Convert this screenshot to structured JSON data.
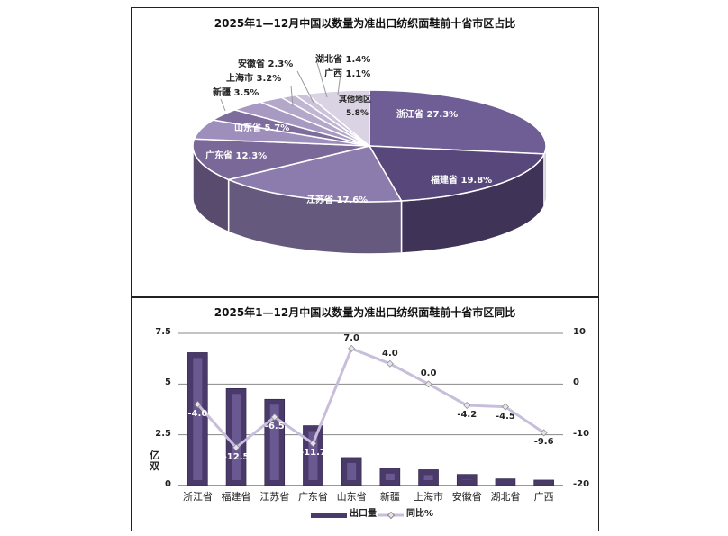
{
  "chart_data": [
    {
      "type": "pie",
      "title": "2025年1—12月中国以数量为准出口纺织面鞋前十省市区占比",
      "slices": [
        {
          "label": "浙江省",
          "value": 27.3,
          "text": "浙江省 27.3%",
          "color": "#6f5d95"
        },
        {
          "label": "福建省",
          "value": 19.8,
          "text": "福建省 19.8%",
          "color": "#58477a"
        },
        {
          "label": "江苏省",
          "value": 17.6,
          "text": "江苏省 17.6%",
          "color": "#8c7cad"
        },
        {
          "label": "广东省",
          "value": 12.3,
          "text": "广东省 12.3%",
          "color": "#7a6899"
        },
        {
          "label": "山东省",
          "value": 5.7,
          "text": "山东省 5.7%",
          "color": "#9d8ebb"
        },
        {
          "label": "新疆",
          "value": 3.5,
          "text": "新疆 3.5%",
          "color": "#7d6c9c"
        },
        {
          "label": "上海市",
          "value": 3.2,
          "text": "上海市 3.2%",
          "color": "#a799c2"
        },
        {
          "label": "安徽省",
          "value": 2.3,
          "text": "安徽省 2.3%",
          "color": "#b3a7ca"
        },
        {
          "label": "湖北省",
          "value": 1.4,
          "text": "湖北省 1.4%",
          "color": "#c0b6d3"
        },
        {
          "label": "广西",
          "value": 1.1,
          "text": "广西 1.1%",
          "color": "#cbc2db"
        },
        {
          "label": "其他地区",
          "value": 5.8,
          "text": "5.8%",
          "color": "#d9d3e3"
        }
      ]
    },
    {
      "type": "bar",
      "title": "2025年1—12月中国以数量为准出口纺织面鞋前十省市区同比",
      "categories": [
        "浙江省",
        "福建省",
        "江苏省",
        "广东省",
        "山东省",
        "新疆",
        "上海市",
        "安徽省",
        "湖北省",
        "广西"
      ],
      "series": [
        {
          "name": "出口量",
          "type": "bar",
          "axis": "left",
          "values": [
            6.55,
            4.78,
            4.25,
            2.95,
            1.38,
            0.85,
            0.78,
            0.55,
            0.33,
            0.27
          ],
          "color": "#4e3e6e"
        },
        {
          "name": "同比%",
          "type": "line",
          "axis": "right",
          "values": [
            -4.0,
            -12.5,
            -6.5,
            -11.7,
            7.0,
            4.0,
            0.0,
            -4.2,
            -4.5,
            -9.6
          ],
          "labels": [
            "-4.0",
            "-12.5",
            "-6.5",
            "-11.7",
            "7.0",
            "4.0",
            "0.0",
            "-4.2",
            "-4.5",
            "-9.6"
          ],
          "color": "#c8bedb"
        }
      ],
      "ylabel": "亿双",
      "ylim": [
        0,
        7.5
      ],
      "yticks": [
        "0",
        "2.5",
        "5",
        "7.5"
      ],
      "y2lim": [
        -20,
        10
      ],
      "y2ticks": [
        "-20",
        "-10",
        "0",
        "10"
      ],
      "grid": true,
      "legend": "bottom"
    }
  ]
}
